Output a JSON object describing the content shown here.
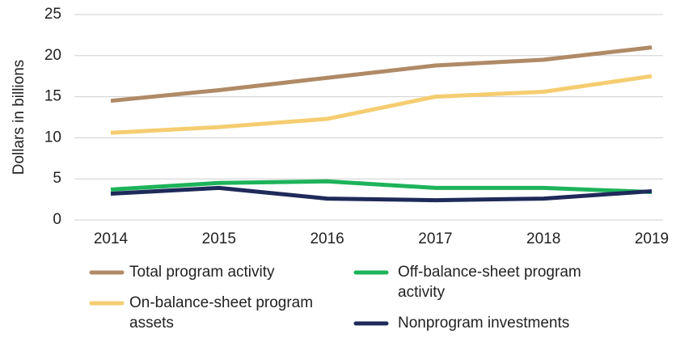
{
  "chart_data": {
    "type": "line",
    "y_label": "Dollars in billions",
    "categories": [
      "2014",
      "2015",
      "2016",
      "2017",
      "2018",
      "2019"
    ],
    "series": [
      {
        "name": "Total program activity",
        "color": "#b08a66",
        "values": [
          14.5,
          15.8,
          17.3,
          18.8,
          19.5,
          21.0
        ]
      },
      {
        "name": "On-balance-sheet program assets",
        "color": "#f5cd70",
        "values": [
          10.6,
          11.3,
          12.3,
          15.0,
          15.6,
          17.5
        ]
      },
      {
        "name": "Off-balance-sheet program activity",
        "color": "#1db35a",
        "values": [
          3.7,
          4.5,
          4.7,
          3.9,
          3.9,
          3.4
        ]
      },
      {
        "name": "Nonprogram investments",
        "color": "#1f2a5a",
        "values": [
          3.2,
          3.9,
          2.6,
          2.4,
          2.6,
          3.5
        ]
      }
    ],
    "ylim": [
      0,
      25
    ],
    "yticks": [
      0,
      5,
      10,
      15,
      20,
      25
    ],
    "grid": true
  }
}
